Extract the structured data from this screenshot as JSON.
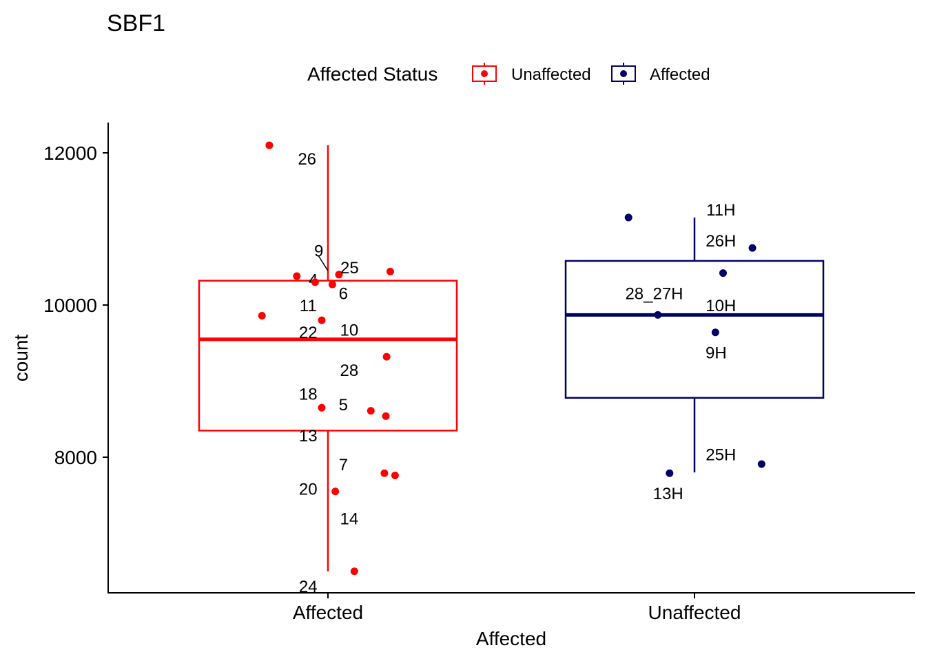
{
  "chart_data": {
    "type": "boxplot",
    "title": "SBF1",
    "xlabel": "Affected",
    "ylabel": "count",
    "ylim": [
      6200,
      12400
    ],
    "yticks": [
      8000,
      10000,
      12000
    ],
    "categories": [
      "Affected",
      "Unaffected"
    ],
    "legend": {
      "title": "Affected Status",
      "position": "top",
      "entries": [
        {
          "label": "Unaffected",
          "color": "#ff0000"
        },
        {
          "label": "Affected",
          "color": "#000066"
        }
      ]
    },
    "boxes": [
      {
        "category": "Affected",
        "group": "Unaffected",
        "color": "#ff0000",
        "whisker_low": 6500,
        "q1": 8350,
        "median": 9550,
        "q3": 10320,
        "whisker_high": 12100
      },
      {
        "category": "Unaffected",
        "group": "Affected",
        "color": "#000066",
        "whisker_low": 7800,
        "q1": 8780,
        "median": 9870,
        "q3": 10580,
        "whisker_high": 11150
      }
    ],
    "points": [
      {
        "category": "Affected",
        "jitter": -0.16,
        "y": 12100,
        "label": "26",
        "lx": -0.057,
        "ly": 11920
      },
      {
        "category": "Affected",
        "jitter": 0.03,
        "y": 10400,
        "label": "9",
        "lx": -0.025,
        "ly": 10710
      },
      {
        "category": "Affected",
        "jitter": 0.17,
        "y": 10440,
        "label": "25",
        "lx": 0.059,
        "ly": 10490
      },
      {
        "category": "Affected",
        "jitter": -0.085,
        "y": 10380,
        "label": "4",
        "lx": -0.04,
        "ly": 10330
      },
      {
        "category": "Affected",
        "jitter": -0.035,
        "y": 10300,
        "label": "11",
        "lx": -0.054,
        "ly": 9990
      },
      {
        "category": "Affected",
        "jitter": 0.012,
        "y": 10270,
        "label": "6",
        "lx": 0.042,
        "ly": 10150
      },
      {
        "category": "Affected",
        "jitter": -0.18,
        "y": 9860,
        "label": "22",
        "lx": -0.054,
        "ly": 9640
      },
      {
        "category": "Affected",
        "jitter": -0.017,
        "y": 9800,
        "label": "10",
        "lx": 0.058,
        "ly": 9670
      },
      {
        "category": "Affected",
        "jitter": 0.16,
        "y": 9320,
        "label": "28",
        "lx": 0.058,
        "ly": 9140
      },
      {
        "category": "Affected",
        "jitter": -0.017,
        "y": 8650,
        "label": "18",
        "lx": -0.054,
        "ly": 8830
      },
      {
        "category": "Affected",
        "jitter": 0.117,
        "y": 8610,
        "label": "5",
        "lx": 0.042,
        "ly": 8690
      },
      {
        "category": "Affected",
        "jitter": 0.158,
        "y": 8540,
        "label": "13",
        "lx": -0.054,
        "ly": 8280
      },
      {
        "category": "Affected",
        "jitter": 0.154,
        "y": 7790,
        "label": "7",
        "lx": 0.042,
        "ly": 7900
      },
      {
        "category": "Affected",
        "jitter": 0.183,
        "y": 7760,
        "label": "20",
        "lx": -0.054,
        "ly": 7580
      },
      {
        "category": "Affected",
        "jitter": 0.02,
        "y": 7550,
        "label": "14",
        "lx": 0.058,
        "ly": 7190
      },
      {
        "category": "Affected",
        "jitter": 0.072,
        "y": 6500,
        "label": "24",
        "lx": -0.054,
        "ly": 6300
      },
      {
        "category": "Unaffected",
        "jitter": -0.18,
        "y": 11150,
        "label": "11H",
        "lx": 0.072,
        "ly": 11250
      },
      {
        "category": "Unaffected",
        "jitter": 0.158,
        "y": 10750,
        "label": "26H",
        "lx": 0.072,
        "ly": 10840
      },
      {
        "category": "Unaffected",
        "jitter": 0.078,
        "y": 10420,
        "label": "10H",
        "lx": 0.072,
        "ly": 9990
      },
      {
        "category": "Unaffected",
        "jitter": -0.1,
        "y": 9870,
        "label": "28_27H",
        "lx": -0.11,
        "ly": 10150
      },
      {
        "category": "Unaffected",
        "jitter": 0.057,
        "y": 9640,
        "label": "9H",
        "lx": 0.059,
        "ly": 9370
      },
      {
        "category": "Unaffected",
        "jitter": 0.183,
        "y": 7910,
        "label": "25H",
        "lx": 0.072,
        "ly": 8030
      },
      {
        "category": "Unaffected",
        "jitter": -0.068,
        "y": 7790,
        "label": "13H",
        "lx": -0.072,
        "ly": 7520
      }
    ],
    "leader_lines": [
      {
        "label": "9",
        "x1": -0.025,
        "y1": 10640,
        "x2": 0.0,
        "y2": 10450
      }
    ]
  }
}
